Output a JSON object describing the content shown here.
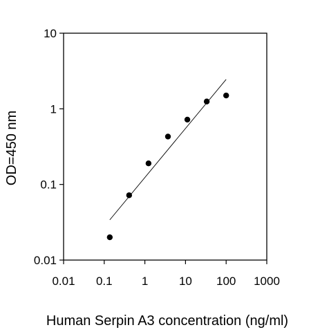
{
  "chart_data": {
    "type": "scatter",
    "xlabel": "Human Serpin A3 concentration (ng/ml)",
    "ylabel": "OD=450 nm",
    "xscale": "log",
    "yscale": "log",
    "xlim": [
      0.01,
      1000
    ],
    "ylim": [
      0.01,
      10
    ],
    "x_ticks": [
      "0.01",
      "0.1",
      "1",
      "10",
      "100",
      "1000"
    ],
    "y_ticks": [
      "0.01",
      "0.1",
      "1",
      "10"
    ],
    "grid": false,
    "points": {
      "x": [
        0.137,
        0.41,
        1.23,
        3.7,
        11.1,
        33.3,
        100
      ],
      "y": [
        0.02,
        0.072,
        0.19,
        0.43,
        0.72,
        1.25,
        1.5
      ]
    },
    "fit_line": {
      "x": [
        0.137,
        100
      ],
      "y": [
        0.034,
        2.45
      ]
    },
    "colors": {
      "marker": "#000000",
      "line": "#000000",
      "axes": "#000000"
    }
  }
}
